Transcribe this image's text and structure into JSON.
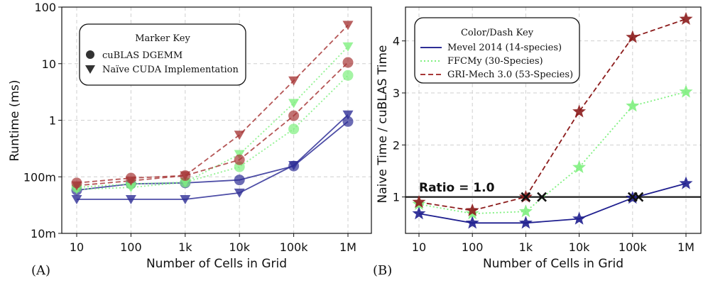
{
  "chart_data": [
    {
      "type": "line",
      "panel_label": "(A)",
      "xlabel": "Number of Cells in Grid",
      "ylabel": "Runtime (ms)",
      "categories": [
        "10",
        "100",
        "1k",
        "10k",
        "100k",
        "1M"
      ],
      "x": [
        10,
        100,
        1000,
        10000,
        100000,
        1000000
      ],
      "yscale": "log",
      "ylim": [
        0.01,
        100
      ],
      "ytick_values": [
        0.01,
        0.1,
        1,
        10,
        100
      ],
      "ytick_labels": [
        "10m",
        "100m",
        "1",
        "10",
        "100"
      ],
      "grid": true,
      "legend_placement": "top-left",
      "legend": {
        "title": "Marker Key",
        "entries": [
          {
            "label": "cuBLAS DGEMM",
            "marker": "circle"
          },
          {
            "label": "Naïve CUDA Implementation",
            "marker": "triangle-down"
          }
        ]
      },
      "series": [
        {
          "name": "Mevel 2014 (14-species) cuBLAS DGEMM",
          "color": "#2e2e96",
          "dash": "solid",
          "marker": "circle",
          "values": [
            0.058,
            0.075,
            0.078,
            0.088,
            0.155,
            0.95
          ]
        },
        {
          "name": "Mevel 2014 (14-species) Naïve CUDA",
          "color": "#2e2e96",
          "dash": "solid",
          "marker": "triangle-down",
          "values": [
            0.04,
            0.04,
            0.04,
            0.052,
            0.16,
            1.25
          ]
        },
        {
          "name": "FFCMy (30-Species) cuBLAS DGEMM",
          "color": "#7ff07f",
          "dash": "dotted",
          "marker": "circle",
          "values": [
            0.065,
            0.075,
            0.08,
            0.15,
            0.7,
            6.2
          ]
        },
        {
          "name": "FFCMy (30-Species) Naïve CUDA",
          "color": "#7ff07f",
          "dash": "dotted",
          "marker": "triangle-down",
          "values": [
            0.06,
            0.065,
            0.08,
            0.25,
            2.0,
            20
          ]
        },
        {
          "name": "GRI-Mech 3.0 (53-Species) cuBLAS DGEMM",
          "color": "#a83838",
          "dash": "dashed",
          "marker": "circle",
          "values": [
            0.078,
            0.095,
            0.105,
            0.2,
            1.2,
            10.5
          ]
        },
        {
          "name": "GRI-Mech 3.0 (53-Species) Naïve CUDA",
          "color": "#a83838",
          "dash": "dashed",
          "marker": "triangle-down",
          "values": [
            0.07,
            0.085,
            0.105,
            0.55,
            5.0,
            48
          ]
        }
      ]
    },
    {
      "type": "line",
      "panel_label": "(B)",
      "xlabel": "Number of Cells in Grid",
      "ylabel": "Naive Time / cuBLAS Time",
      "categories": [
        "10",
        "100",
        "1k",
        "10k",
        "100k",
        "1M"
      ],
      "x": [
        10,
        100,
        1000,
        10000,
        100000,
        1000000
      ],
      "yscale": "linear",
      "ylim": [
        0.3,
        4.65
      ],
      "ytick_values": [
        1,
        2,
        3,
        4
      ],
      "ytick_labels": [
        "1",
        "2",
        "3",
        "4"
      ],
      "grid": true,
      "legend_placement": "top-left",
      "legend": {
        "title": "Color/Dash Key",
        "entries": [
          {
            "label": "Mevel 2014 (14-species)",
            "color": "#2e2e96",
            "dash": "solid"
          },
          {
            "label": "FFCMy (30-Species)",
            "color": "#7ff07f",
            "dash": "dotted"
          },
          {
            "label": "GRI-Mech 3.0 (53-Species)",
            "color": "#a83838",
            "dash": "dashed"
          }
        ]
      },
      "reference_line": {
        "y": 1.0,
        "label": "Ratio = 1.0"
      },
      "crossover_points": [
        {
          "x": 1000,
          "y": 1.0
        },
        {
          "x": 2000,
          "y": 1.0
        },
        {
          "x": 100000,
          "y": 1.0
        },
        {
          "x": 130000,
          "y": 1.0
        }
      ],
      "series": [
        {
          "name": "Mevel 2014 (14-species)",
          "color": "#1f1f8f",
          "dash": "solid",
          "marker": "star",
          "values": [
            0.68,
            0.5,
            0.5,
            0.58,
            0.98,
            1.26
          ]
        },
        {
          "name": "FFCMy (30-Species)",
          "color": "#7ff07f",
          "dash": "dotted",
          "marker": "star",
          "values": [
            0.86,
            0.68,
            0.72,
            1.57,
            2.75,
            3.02
          ]
        },
        {
          "name": "GRI-Mech 3.0 (53-Species)",
          "color": "#8c1c1c",
          "dash": "dashed",
          "marker": "star",
          "values": [
            0.9,
            0.74,
            1.0,
            2.64,
            4.07,
            4.42
          ]
        }
      ]
    }
  ]
}
